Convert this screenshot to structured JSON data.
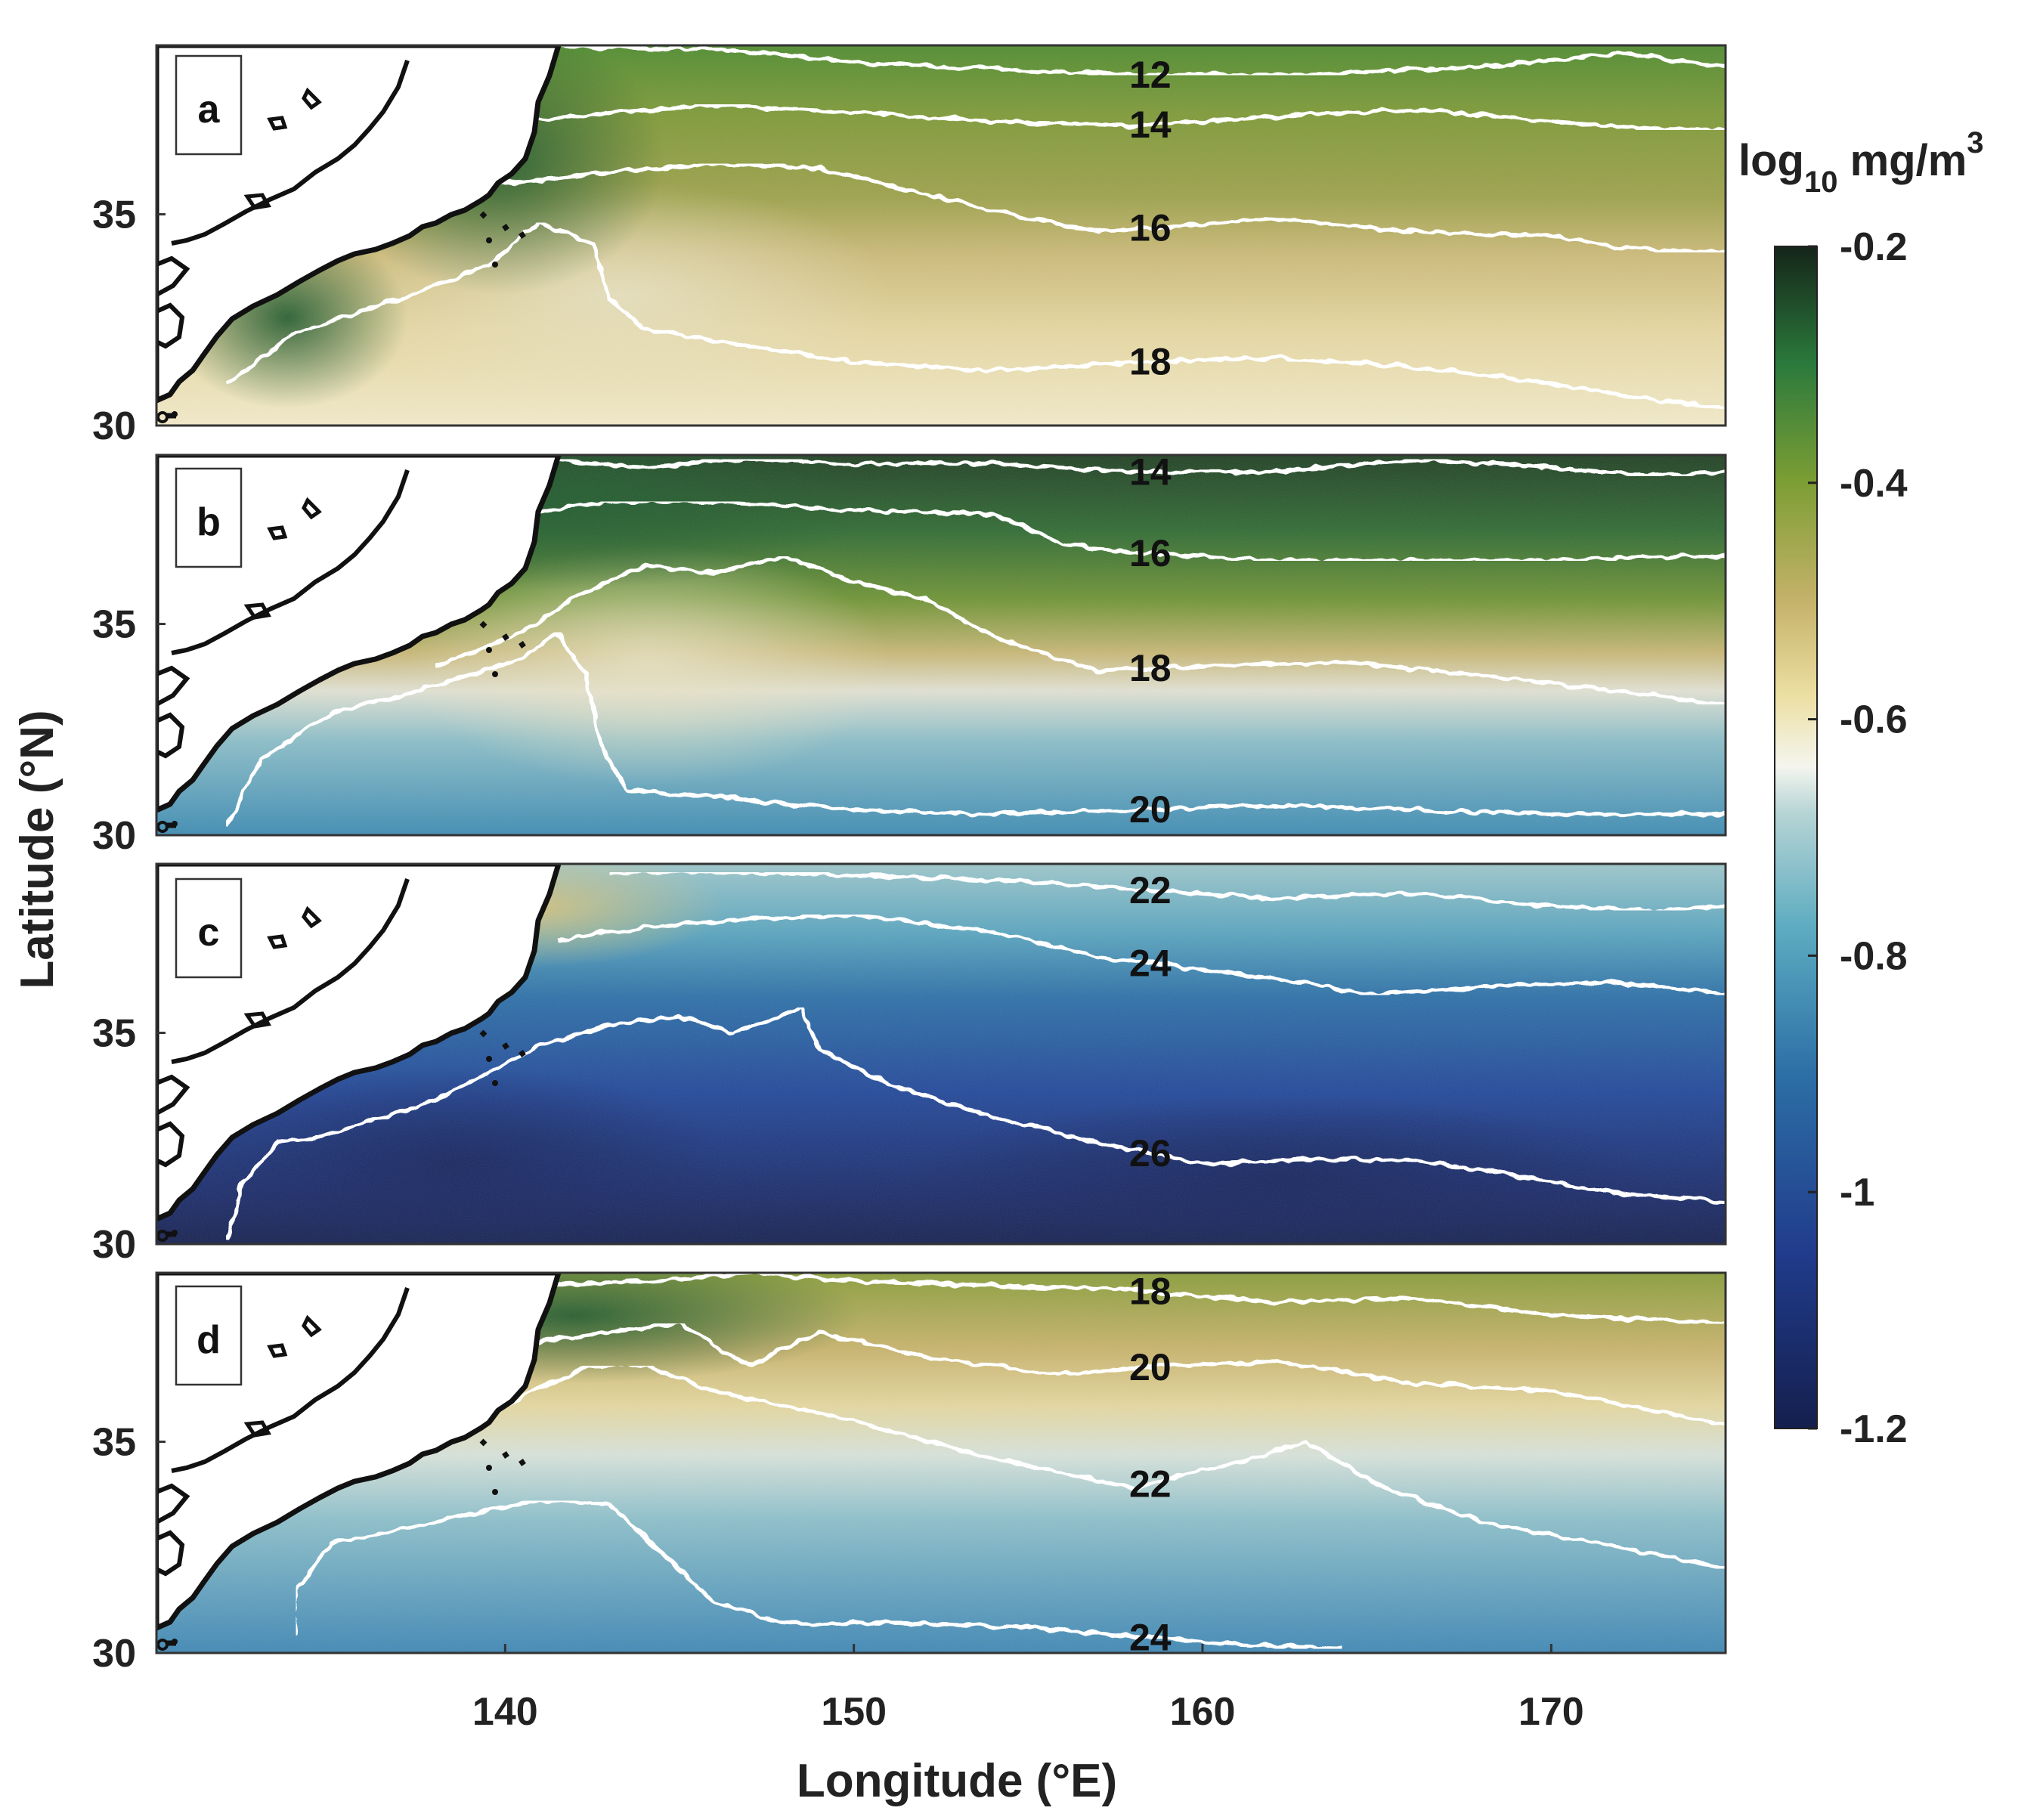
{
  "chart_data": {
    "type": "heatmap",
    "xlabel": "Longitude (°E)",
    "ylabel": "Latitude (°N)",
    "xlim": [
      130,
      175
    ],
    "ylim": [
      30,
      39
    ],
    "xticks": [
      140,
      150,
      160,
      170
    ],
    "yticks": [
      30,
      35
    ],
    "colorbar": {
      "unit_base": "log",
      "unit_sub": "10",
      "unit_main": " mg/m",
      "unit_sup": "3",
      "ticks": [
        "-0.2",
        "-0.4",
        "-0.6",
        "-0.8",
        "-1",
        "-1.2"
      ],
      "range": [
        -1.2,
        -0.2
      ]
    },
    "panels": [
      {
        "label": "a",
        "contours": [
          {
            "level": "12",
            "label_lon": 158.5,
            "points": [
              [
                141,
                39.0
              ],
              [
                146,
                38.9
              ],
              [
                150,
                38.6
              ],
              [
                155,
                38.4
              ],
              [
                158,
                38.3
              ],
              [
                163,
                38.3
              ],
              [
                168,
                38.5
              ],
              [
                172,
                38.8
              ],
              [
                175,
                38.5
              ]
            ]
          },
          {
            "level": "14",
            "label_lon": 158.5,
            "points": [
              [
                140.5,
                37.2
              ],
              [
                143,
                37.4
              ],
              [
                146,
                37.6
              ],
              [
                150,
                37.4
              ],
              [
                154,
                37.2
              ],
              [
                158,
                37.1
              ],
              [
                162,
                37.3
              ],
              [
                166,
                37.5
              ],
              [
                170,
                37.2
              ],
              [
                173,
                37.0
              ],
              [
                175,
                37.0
              ]
            ]
          },
          {
            "level": "16",
            "label_lon": 158.5,
            "points": [
              [
                139,
                35.7
              ],
              [
                141,
                35.8
              ],
              [
                143,
                36.0
              ],
              [
                146,
                36.2
              ],
              [
                149,
                36.1
              ],
              [
                152,
                35.5
              ],
              [
                155,
                34.9
              ],
              [
                157,
                34.6
              ],
              [
                159,
                34.7
              ],
              [
                162,
                34.9
              ],
              [
                166,
                34.6
              ],
              [
                170,
                34.5
              ],
              [
                172,
                34.2
              ],
              [
                175,
                34.1
              ]
            ]
          },
          {
            "level": "18",
            "label_lon": 158.5,
            "points": [
              [
                132,
                31.0
              ],
              [
                134,
                32.2
              ],
              [
                137,
                33.0
              ],
              [
                139.5,
                33.8
              ],
              [
                141,
                34.8
              ],
              [
                142.5,
                34.3
              ],
              [
                143,
                33.0
              ],
              [
                144,
                32.3
              ],
              [
                146,
                32.0
              ],
              [
                150,
                31.5
              ],
              [
                154,
                31.3
              ],
              [
                158,
                31.5
              ],
              [
                162,
                31.6
              ],
              [
                166,
                31.4
              ],
              [
                170,
                31.0
              ],
              [
                173,
                30.6
              ],
              [
                175,
                30.4
              ]
            ]
          }
        ]
      },
      {
        "label": "b",
        "contours": [
          {
            "level": "14",
            "label_lon": 158.5,
            "points": [
              [
                141,
                38.9
              ],
              [
                144,
                38.7
              ],
              [
                147,
                38.9
              ],
              [
                150,
                38.8
              ],
              [
                154,
                38.8
              ],
              [
                158,
                38.6
              ],
              [
                162,
                38.6
              ],
              [
                166,
                38.9
              ],
              [
                170,
                38.7
              ],
              [
                173,
                38.5
              ],
              [
                175,
                38.6
              ]
            ]
          },
          {
            "level": "16",
            "label_lon": 158.5,
            "points": [
              [
                140.5,
                37.6
              ],
              [
                143,
                37.9
              ],
              [
                146,
                37.9
              ],
              [
                150,
                37.7
              ],
              [
                154,
                37.6
              ],
              [
                156,
                36.9
              ],
              [
                158,
                36.7
              ],
              [
                162,
                36.5
              ],
              [
                166,
                36.5
              ],
              [
                170,
                36.5
              ],
              [
                173,
                36.6
              ],
              [
                175,
                36.6
              ]
            ]
          },
          {
            "level": "18",
            "label_lon": 158.5,
            "points": [
              [
                138,
                34.0
              ],
              [
                140.5,
                34.8
              ],
              [
                142,
                35.6
              ],
              [
                144,
                36.4
              ],
              [
                146,
                36.2
              ],
              [
                148,
                36.6
              ],
              [
                150,
                36.0
              ],
              [
                152,
                35.6
              ],
              [
                154,
                34.7
              ],
              [
                157,
                33.9
              ],
              [
                160,
                34.0
              ],
              [
                164,
                34.1
              ],
              [
                168,
                33.8
              ],
              [
                172,
                33.4
              ],
              [
                175,
                33.1
              ]
            ]
          },
          {
            "level": "20",
            "label_lon": 158.5,
            "points": [
              [
                132,
                30.2
              ],
              [
                133,
                31.8
              ],
              [
                135,
                32.9
              ],
              [
                137,
                33.3
              ],
              [
                139,
                33.8
              ],
              [
                140.5,
                34.2
              ],
              [
                141.5,
                34.8
              ],
              [
                142.3,
                33.8
              ],
              [
                142.8,
                32.0
              ],
              [
                143.5,
                31.1
              ],
              [
                146,
                30.9
              ],
              [
                150,
                30.6
              ],
              [
                154,
                30.5
              ],
              [
                158,
                30.6
              ],
              [
                162,
                30.7
              ],
              [
                166,
                30.6
              ],
              [
                170,
                30.5
              ],
              [
                175,
                30.5
              ]
            ]
          }
        ]
      },
      {
        "label": "c",
        "contours": [
          {
            "level": "22",
            "label_lon": 158.5,
            "points": [
              [
                143,
                38.8
              ],
              [
                147,
                38.8
              ],
              [
                151,
                38.7
              ],
              [
                155,
                38.6
              ],
              [
                158,
                38.4
              ],
              [
                162,
                38.2
              ],
              [
                166,
                38.3
              ],
              [
                170,
                38.0
              ],
              [
                173,
                37.9
              ],
              [
                175,
                38.0
              ]
            ]
          },
          {
            "level": "24",
            "label_lon": 158.5,
            "points": [
              [
                141.5,
                37.2
              ],
              [
                144,
                37.5
              ],
              [
                147,
                37.7
              ],
              [
                150,
                37.8
              ],
              [
                154,
                37.4
              ],
              [
                157,
                36.8
              ],
              [
                159,
                36.6
              ],
              [
                162,
                36.3
              ],
              [
                165,
                35.9
              ],
              [
                168,
                36.1
              ],
              [
                172,
                36.2
              ],
              [
                175,
                35.9
              ]
            ]
          },
          {
            "level": "26",
            "label_lon": 158.5,
            "points": [
              [
                132,
                30.1
              ],
              [
                132.5,
                31.5
              ],
              [
                133.5,
                32.4
              ],
              [
                134.5,
                32.5
              ],
              [
                138,
                33.4
              ],
              [
                141,
                34.7
              ],
              [
                143,
                35.2
              ],
              [
                145,
                35.4
              ],
              [
                146.5,
                35.0
              ],
              [
                148.5,
                35.6
              ],
              [
                149,
                34.6
              ],
              [
                151,
                33.8
              ],
              [
                154,
                33.0
              ],
              [
                157,
                32.4
              ],
              [
                160,
                31.9
              ],
              [
                163,
                32.0
              ],
              [
                166,
                32.0
              ],
              [
                169,
                31.6
              ],
              [
                172,
                31.2
              ],
              [
                175,
                31.0
              ]
            ]
          }
        ]
      },
      {
        "label": "d",
        "contours": [
          {
            "level": "18",
            "label_lon": 158.5,
            "points": [
              [
                141,
                38.7
              ],
              [
                144,
                38.8
              ],
              [
                147,
                39.0
              ],
              [
                150,
                38.8
              ],
              [
                154,
                38.7
              ],
              [
                158,
                38.6
              ],
              [
                162,
                38.3
              ],
              [
                166,
                38.4
              ],
              [
                170,
                38.0
              ],
              [
                173,
                37.9
              ],
              [
                175,
                37.8
              ]
            ]
          },
          {
            "level": "20",
            "label_lon": 158.5,
            "points": [
              [
                140.5,
                37.3
              ],
              [
                143,
                37.6
              ],
              [
                145,
                37.8
              ],
              [
                147,
                36.8
              ],
              [
                149,
                37.6
              ],
              [
                152,
                37.0
              ],
              [
                156,
                36.6
              ],
              [
                159,
                36.8
              ],
              [
                162,
                36.9
              ],
              [
                166,
                36.4
              ],
              [
                170,
                36.2
              ],
              [
                175,
                35.4
              ]
            ]
          },
          {
            "level": "22",
            "label_lon": 158.5,
            "points": [
              [
                138.5,
                35.0
              ],
              [
                140.5,
                36.1
              ],
              [
                142.5,
                36.8
              ],
              [
                144,
                36.8
              ],
              [
                146,
                36.2
              ],
              [
                150,
                35.5
              ],
              [
                154,
                34.6
              ],
              [
                158,
                33.9
              ],
              [
                161,
                34.5
              ],
              [
                163,
                35.0
              ],
              [
                165,
                34.0
              ],
              [
                168,
                33.1
              ],
              [
                172,
                32.5
              ],
              [
                175,
                32.0
              ]
            ]
          },
          {
            "level": "24",
            "label_lon": 158.5,
            "points": [
              [
                134,
                30.4
              ],
              [
                134,
                31.5
              ],
              [
                135,
                32.6
              ],
              [
                137.5,
                33.0
              ],
              [
                139,
                33.3
              ],
              [
                141,
                33.6
              ],
              [
                143,
                33.5
              ],
              [
                146,
                31.2
              ],
              [
                148,
                30.7
              ],
              [
                152,
                30.7
              ],
              [
                155,
                30.6
              ],
              [
                158,
                30.4
              ],
              [
                161,
                30.2
              ],
              [
                164,
                30.1
              ]
            ]
          }
        ]
      }
    ]
  }
}
